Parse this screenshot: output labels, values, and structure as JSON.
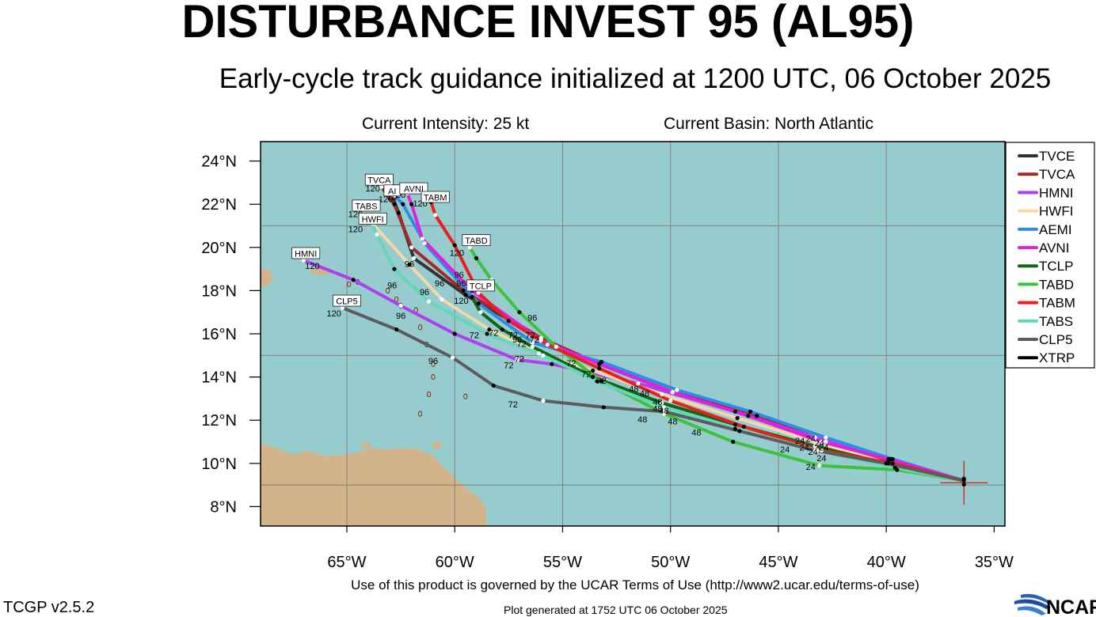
{
  "header": {
    "title": "DISTURBANCE INVEST 95 (AL95)",
    "subtitle": "Early-cycle track guidance initialized at 1200 UTC, 06 October 2025",
    "intensity": "Current Intensity: 25 kt",
    "basin": "Current Basin: North Atlantic"
  },
  "footer": {
    "terms": "Use of this product is governed by the UCAR Terms of Use (http://www2.ucar.edu/terms-of-use)",
    "version": "TCGP v2.5.2",
    "generated": "Plot generated at 1752 UTC   06 October 2025",
    "logo_text": "NCAR"
  },
  "colors": {
    "ocean": "#96cccd",
    "land": "#d3b38a",
    "grid": "#7d7d7d",
    "current_position_marker": "#dd1111"
  },
  "chart_data": {
    "type": "map-track",
    "x_axis": {
      "range": [
        -69.0,
        -34.5
      ],
      "ticks": [
        -65,
        -60,
        -55,
        -50,
        -45,
        -40,
        -35
      ],
      "tick_labels": [
        "65°W",
        "60°W",
        "55°W",
        "50°W",
        "45°W",
        "40°W",
        "35°W"
      ]
    },
    "y_axis": {
      "range": [
        7.1,
        24.9
      ],
      "ticks": [
        8,
        10,
        12,
        14,
        16,
        18,
        20,
        22,
        24
      ],
      "tick_labels": [
        "8°N",
        "10°N",
        "12°N",
        "14°N",
        "16°N",
        "18°N",
        "20°N",
        "22°N",
        "24°N"
      ]
    },
    "grid_lons": [
      -65,
      -60,
      -55,
      -50,
      -45,
      -40
    ],
    "grid_lats": [
      9,
      15,
      21
    ],
    "current_position": {
      "lon": -36.4,
      "lat": 9.1
    },
    "legend_position": "right",
    "models": [
      {
        "name": "TVCE",
        "color": "#333333",
        "label": "",
        "points": [
          [
            -36.4,
            9.2
          ],
          [
            -39.9,
            10.1
          ],
          [
            -42.8,
            11.0
          ],
          [
            -46.0,
            12.2
          ],
          [
            -49.9,
            13.3
          ],
          [
            -53.3,
            14.6
          ],
          [
            -56.0,
            15.8
          ],
          [
            -59.5,
            17.8
          ],
          [
            -61.9,
            19.5
          ],
          [
            -62.6,
            21.6
          ],
          [
            -62.9,
            22.4
          ]
        ]
      },
      {
        "name": "TVCA",
        "color": "#a52828",
        "label": "TVCA",
        "points": [
          [
            -36.4,
            9.2
          ],
          [
            -39.9,
            10.1
          ],
          [
            -42.8,
            11.0
          ],
          [
            -46.0,
            12.2
          ],
          [
            -49.9,
            13.3
          ],
          [
            -53.3,
            14.6
          ],
          [
            -56.0,
            15.8
          ],
          [
            -59.6,
            18.0
          ],
          [
            -62.0,
            20.0
          ],
          [
            -62.8,
            22.0
          ],
          [
            -63.4,
            22.8
          ]
        ],
        "label_hour": "120"
      },
      {
        "name": "HMNI",
        "color": "#b040ee",
        "label": "HMNI",
        "points": [
          [
            -36.4,
            9.2
          ],
          [
            -39.8,
            10.2
          ],
          [
            -43.3,
            11.2
          ],
          [
            -47.0,
            12.4
          ],
          [
            -51.5,
            13.7
          ],
          [
            -55.5,
            14.6
          ],
          [
            -57.1,
            14.8
          ],
          [
            -60.0,
            16.0
          ],
          [
            -62.5,
            17.3
          ],
          [
            -64.7,
            18.5
          ],
          [
            -67.0,
            19.4
          ]
        ],
        "label_hour": "120"
      },
      {
        "name": "HWFI",
        "color": "#f5d8a8",
        "label": "HWFI",
        "points": [
          [
            -36.4,
            9.2
          ],
          [
            -39.9,
            10.0
          ],
          [
            -43.3,
            11.0
          ],
          [
            -46.9,
            12.1
          ],
          [
            -50.4,
            13.2
          ],
          [
            -53.6,
            14.3
          ],
          [
            -56.1,
            15.1
          ],
          [
            -58.4,
            16.2
          ],
          [
            -60.6,
            17.6
          ],
          [
            -62.1,
            19.2
          ],
          [
            -63.8,
            21.1
          ]
        ],
        "label_hour": "120"
      },
      {
        "name": "AEMI",
        "color": "#2e8be6",
        "label": "AEMI",
        "points": [
          [
            -36.4,
            9.2
          ],
          [
            -39.7,
            10.2
          ],
          [
            -42.8,
            11.2
          ],
          [
            -46.3,
            12.4
          ],
          [
            -49.7,
            13.4
          ],
          [
            -53.2,
            14.7
          ],
          [
            -56.4,
            15.6
          ],
          [
            -58.9,
            17.4
          ],
          [
            -61.4,
            20.2
          ],
          [
            -62.4,
            22.0
          ],
          [
            -62.8,
            22.4
          ]
        ],
        "label_hour": "120"
      },
      {
        "name": "AVNI",
        "color": "#e020e0",
        "label": "AVNI",
        "points": [
          [
            -36.4,
            9.2
          ],
          [
            -39.9,
            10.2
          ],
          [
            -43.0,
            11.0
          ],
          [
            -46.4,
            12.2
          ],
          [
            -49.9,
            13.3
          ],
          [
            -53.3,
            14.6
          ],
          [
            -56.0,
            15.7
          ],
          [
            -59.2,
            18.0
          ],
          [
            -61.5,
            20.4
          ],
          [
            -62.0,
            22.0
          ],
          [
            -62.2,
            22.5
          ]
        ],
        "label_hour": "120"
      },
      {
        "name": "TCLP",
        "color": "#116611",
        "label": "TCLP",
        "points": [
          [
            -36.4,
            9.2
          ],
          [
            -40.0,
            10.0
          ],
          [
            -43.3,
            10.8
          ],
          [
            -47.0,
            11.8
          ],
          [
            -50.4,
            12.8
          ],
          [
            -53.6,
            14.0
          ],
          [
            -56.4,
            15.4
          ],
          [
            -57.8,
            16.2
          ],
          [
            -58.8,
            17.0
          ],
          [
            -59.2,
            17.7
          ]
        ],
        "label_hour": "120"
      },
      {
        "name": "TABD",
        "color": "#3cc23c",
        "label": "TABD",
        "points": [
          [
            -36.4,
            9.2
          ],
          [
            -39.5,
            9.7
          ],
          [
            -43.1,
            9.9
          ],
          [
            -47.1,
            11.0
          ],
          [
            -50.3,
            12.3
          ],
          [
            -53.2,
            13.8
          ],
          [
            -55.3,
            15.4
          ],
          [
            -57.0,
            17.0
          ],
          [
            -58.3,
            18.5
          ],
          [
            -59.0,
            19.5
          ],
          [
            -59.3,
            20.0
          ]
        ],
        "label_hour": "120"
      },
      {
        "name": "TABM",
        "color": "#ee1c1c",
        "label": "TABM",
        "points": [
          [
            -36.4,
            9.2
          ],
          [
            -39.7,
            10.0
          ],
          [
            -43.0,
            10.6
          ],
          [
            -46.6,
            11.7
          ],
          [
            -50.0,
            12.9
          ],
          [
            -53.3,
            14.4
          ],
          [
            -55.7,
            15.5
          ],
          [
            -57.5,
            16.6
          ],
          [
            -58.9,
            17.9
          ],
          [
            -60.0,
            20.1
          ],
          [
            -60.9,
            21.5
          ],
          [
            -61.1,
            22.1
          ]
        ],
        "label_hour": "120"
      },
      {
        "name": "TABS",
        "color": "#66d6b8",
        "label": "TABS",
        "points": [
          [
            -36.4,
            9.2
          ],
          [
            -39.6,
            9.8
          ],
          [
            -43.2,
            10.6
          ],
          [
            -47.0,
            11.6
          ],
          [
            -50.3,
            12.6
          ],
          [
            -53.4,
            13.8
          ],
          [
            -55.9,
            15.0
          ],
          [
            -58.5,
            16.0
          ],
          [
            -61.2,
            17.5
          ],
          [
            -62.8,
            19.0
          ],
          [
            -63.6,
            20.6
          ],
          [
            -64.0,
            21.5
          ]
        ],
        "label_hour": "120"
      },
      {
        "name": "CLP5",
        "color": "#5c5c5c",
        "label": "CLP5",
        "points": [
          [
            -36.4,
            9.2
          ],
          [
            -40.0,
            10.0
          ],
          [
            -43.3,
            10.6
          ],
          [
            -46.8,
            11.5
          ],
          [
            -50.3,
            12.4
          ],
          [
            -53.1,
            12.6
          ],
          [
            -55.9,
            12.9
          ],
          [
            -58.2,
            13.6
          ],
          [
            -60.1,
            14.9
          ],
          [
            -62.7,
            16.2
          ],
          [
            -65.2,
            17.2
          ]
        ],
        "label_hour": "120"
      },
      {
        "name": "XTRP",
        "color": "#000000",
        "label": "",
        "points": [
          [
            -36.4,
            9.1
          ],
          [
            -36.4,
            9.3
          ]
        ]
      }
    ],
    "legend_entries": [
      "TVCE",
      "TVCA",
      "HMNI",
      "HWFI",
      "AEMI",
      "AVNI",
      "TCLP",
      "TABD",
      "TABM",
      "TABS",
      "CLP5",
      "XTRP"
    ],
    "hour_labels": [
      {
        "text": "24",
        "lon": -44.7,
        "lat": 10.5
      },
      {
        "text": "24",
        "lon": -43.8,
        "lat": 10.6
      },
      {
        "text": "24",
        "lon": -43.4,
        "lat": 10.4
      },
      {
        "text": "24",
        "lon": -43.0,
        "lat": 10.1
      },
      {
        "text": "24",
        "lon": -43.5,
        "lat": 9.7
      },
      {
        "text": "24",
        "lon": -44.0,
        "lat": 10.9
      },
      {
        "text": "24",
        "lon": -43.5,
        "lat": 11.0
      },
      {
        "text": "24",
        "lon": -43.1,
        "lat": 10.8
      },
      {
        "text": "24",
        "lon": -42.9,
        "lat": 10.6
      },
      {
        "text": "48",
        "lon": -51.7,
        "lat": 13.3
      },
      {
        "text": "48",
        "lon": -51.2,
        "lat": 13.1
      },
      {
        "text": "48",
        "lon": -50.6,
        "lat": 12.7
      },
      {
        "text": "48",
        "lon": -50.6,
        "lat": 12.4
      },
      {
        "text": "48",
        "lon": -50.3,
        "lat": 12.3
      },
      {
        "text": "48",
        "lon": -51.3,
        "lat": 11.9
      },
      {
        "text": "48",
        "lon": -49.9,
        "lat": 11.8
      },
      {
        "text": "48",
        "lon": -48.8,
        "lat": 11.3
      },
      {
        "text": "72",
        "lon": -59.1,
        "lat": 15.8
      },
      {
        "text": "72",
        "lon": -58.2,
        "lat": 15.9
      },
      {
        "text": "72",
        "lon": -57.3,
        "lat": 15.8
      },
      {
        "text": "72",
        "lon": -56.5,
        "lat": 15.8
      },
      {
        "text": "72",
        "lon": -56.3,
        "lat": 15.6
      },
      {
        "text": "72",
        "lon": -56.9,
        "lat": 15.4
      },
      {
        "text": "72",
        "lon": -57.0,
        "lat": 14.7
      },
      {
        "text": "72",
        "lon": -57.5,
        "lat": 14.4
      },
      {
        "text": "72",
        "lon": -54.6,
        "lat": 14.5
      },
      {
        "text": "72",
        "lon": -53.9,
        "lat": 14.0
      },
      {
        "text": "72",
        "lon": -53.2,
        "lat": 13.7
      },
      {
        "text": "72",
        "lon": -57.3,
        "lat": 12.6
      },
      {
        "text": "96",
        "lon": -62.1,
        "lat": 19.1
      },
      {
        "text": "96",
        "lon": -59.8,
        "lat": 18.6
      },
      {
        "text": "96",
        "lon": -59.7,
        "lat": 18.2
      },
      {
        "text": "96",
        "lon": -61.4,
        "lat": 17.8
      },
      {
        "text": "96",
        "lon": -62.9,
        "lat": 18.1
      },
      {
        "text": "96",
        "lon": -62.5,
        "lat": 16.7
      },
      {
        "text": "96",
        "lon": -60.7,
        "lat": 18.2
      },
      {
        "text": "96",
        "lon": -59.0,
        "lat": 18.2
      },
      {
        "text": "96",
        "lon": -56.4,
        "lat": 16.6
      },
      {
        "text": "96",
        "lon": -57.1,
        "lat": 15.6
      },
      {
        "text": "96",
        "lon": -61.0,
        "lat": 14.6
      },
      {
        "text": "120",
        "lon": -63.8,
        "lat": 22.6
      },
      {
        "text": "120",
        "lon": -63.2,
        "lat": 22.1
      },
      {
        "text": "120",
        "lon": -61.6,
        "lat": 21.9
      },
      {
        "text": "120",
        "lon": -64.6,
        "lat": 21.4
      },
      {
        "text": "120",
        "lon": -64.6,
        "lat": 20.7
      },
      {
        "text": "120",
        "lon": -59.9,
        "lat": 19.6
      },
      {
        "text": "120",
        "lon": -66.6,
        "lat": 19.0
      },
      {
        "text": "120",
        "lon": -65.6,
        "lat": 16.8
      },
      {
        "text": "120",
        "lon": -59.7,
        "lat": 17.4
      },
      {
        "text": "20",
        "lon": -62.9,
        "lat": 22.2
      },
      {
        "text": "20",
        "lon": -62.5,
        "lat": 22.3
      }
    ],
    "box_labels": [
      {
        "text": "TVCA",
        "lon": -63.5,
        "lat": 23.1
      },
      {
        "text": "AI",
        "lon": -62.9,
        "lat": 22.6
      },
      {
        "text": "AVNI",
        "lon": -61.9,
        "lat": 22.7
      },
      {
        "text": "TABM",
        "lon": -60.9,
        "lat": 22.3
      },
      {
        "text": "TABS",
        "lon": -64.1,
        "lat": 21.9
      },
      {
        "text": "HWFI",
        "lon": -63.8,
        "lat": 21.3
      },
      {
        "text": "TABD",
        "lon": -59.0,
        "lat": 20.3
      },
      {
        "text": "HMNI",
        "lon": -66.9,
        "lat": 19.7
      },
      {
        "text": "TCLP",
        "lon": -58.8,
        "lat": 18.2
      },
      {
        "text": "CLP5",
        "lon": -65.0,
        "lat": 17.5
      }
    ]
  }
}
